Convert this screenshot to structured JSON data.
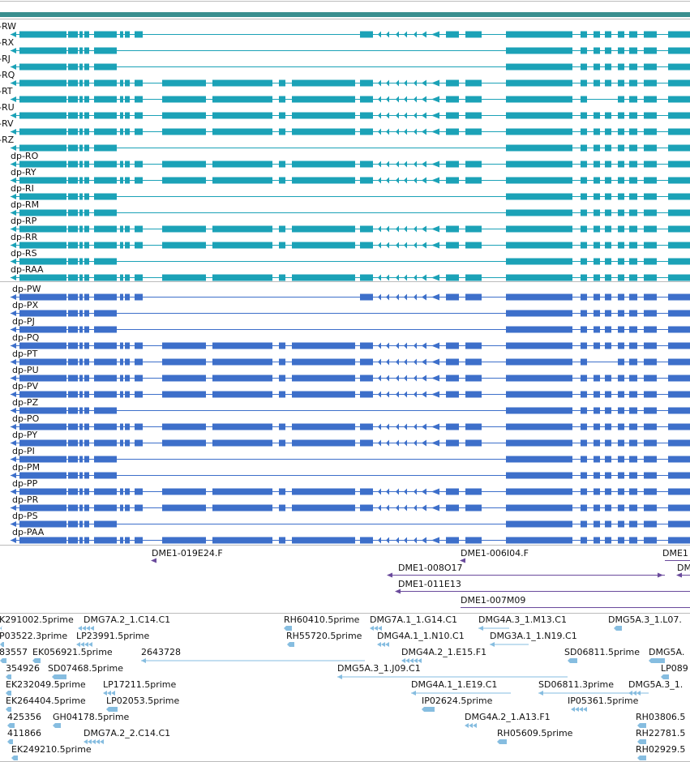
{
  "colors": {
    "transcript": "#1ba2b7",
    "protein": "#3d6fca",
    "cdna_probe": "#6a4a9c",
    "est": "#86bde0",
    "border": "#bbbbbb",
    "header_bar": "#3a8f8f"
  },
  "transcripts": [
    {
      "label": "-RW",
      "pattern": "W"
    },
    {
      "label": "-RX",
      "pattern": "X"
    },
    {
      "label": "-RJ",
      "pattern": "J"
    },
    {
      "label": "-RQ",
      "pattern": "F"
    },
    {
      "label": "-RT",
      "pattern": "T"
    },
    {
      "label": "-RU",
      "pattern": "F"
    },
    {
      "label": "-RV",
      "pattern": "F"
    },
    {
      "label": "-RZ",
      "pattern": "J"
    },
    {
      "label": "dp-RO",
      "pattern": "F"
    },
    {
      "label": "dp-RY",
      "pattern": "F"
    },
    {
      "label": "dp-RI",
      "pattern": "J"
    },
    {
      "label": "dp-RM",
      "pattern": "J"
    },
    {
      "label": "dp-RP",
      "pattern": "P"
    },
    {
      "label": "dp-RR",
      "pattern": "F"
    },
    {
      "label": "dp-RS",
      "pattern": "J"
    },
    {
      "label": "dp-RAA",
      "pattern": "F"
    }
  ],
  "proteins": [
    {
      "label": "dp-PW",
      "pattern": "W"
    },
    {
      "label": "dp-PX",
      "pattern": "X"
    },
    {
      "label": "dp-PJ",
      "pattern": "J"
    },
    {
      "label": "dp-PQ",
      "pattern": "F"
    },
    {
      "label": "dp-PT",
      "pattern": "T"
    },
    {
      "label": "dp-PU",
      "pattern": "F"
    },
    {
      "label": "dp-PV",
      "pattern": "F"
    },
    {
      "label": "dp-PZ",
      "pattern": "J"
    },
    {
      "label": "dp-PO",
      "pattern": "F"
    },
    {
      "label": "dp-PY",
      "pattern": "F"
    },
    {
      "label": "dp-PI",
      "pattern": "J"
    },
    {
      "label": "dp-PM",
      "pattern": "J"
    },
    {
      "label": "dp-PP",
      "pattern": "P"
    },
    {
      "label": "dp-PR",
      "pattern": "F"
    },
    {
      "label": "dp-PS",
      "pattern": "J"
    },
    {
      "label": "dp-PAA",
      "pattern": "F"
    }
  ],
  "cdna_probes": [
    {
      "label": "DME1-019E24.F"
    },
    {
      "label": "DME1-006I04.F"
    },
    {
      "label": "DME1"
    },
    {
      "label": "DME1-008O17"
    },
    {
      "label": "DM"
    },
    {
      "label": "DME1-011E13"
    },
    {
      "label": "DME1-007M09"
    }
  ],
  "ests": [
    {
      "label": "K291002.5prime"
    },
    {
      "label": "DMG7A.2_1.C14.C1"
    },
    {
      "label": "RH60410.5prime"
    },
    {
      "label": "DMG7A.1_1.G14.C1"
    },
    {
      "label": "DMG4A.3_1.M13.C1"
    },
    {
      "label": "DMG5A.3_1.L07."
    },
    {
      "label": "P03522.3prime"
    },
    {
      "label": "LP23991.5prime"
    },
    {
      "label": "RH55720.5prime"
    },
    {
      "label": "DMG4A.1_1.N10.C1"
    },
    {
      "label": "DMG3A.1_1.N19.C1"
    },
    {
      "label": "83557"
    },
    {
      "label": "EK056921.5prime"
    },
    {
      "label": "2643728"
    },
    {
      "label": "DMG4A.2_1.E15.F1"
    },
    {
      "label": "SD06811.5prime"
    },
    {
      "label": "DMG5A."
    },
    {
      "label": "354926"
    },
    {
      "label": "SD07468.5prime"
    },
    {
      "label": "DMG5A.3_1.J09.C1"
    },
    {
      "label": "LP089"
    },
    {
      "label": "EK232049.5prime"
    },
    {
      "label": "LP17211.5prime"
    },
    {
      "label": "DMG4A.1_1.E19.C1"
    },
    {
      "label": "SD06811.3prime"
    },
    {
      "label": "DMG5A.3_1."
    },
    {
      "label": "EK264404.5prime"
    },
    {
      "label": "LP02053.5prime"
    },
    {
      "label": "IP02624.5prime"
    },
    {
      "label": "IP05361.5prime"
    },
    {
      "label": "425356"
    },
    {
      "label": "GH04178.5prime"
    },
    {
      "label": "DMG4A.2_1.A13.F1"
    },
    {
      "label": "RH03806.5"
    },
    {
      "label": "411866"
    },
    {
      "label": "DMG7A.2_2.C14.C1"
    },
    {
      "label": "RH05609.5prime"
    },
    {
      "label": "RH22781.5"
    },
    {
      "label": "EK249210.5prime"
    },
    {
      "label": "RH02929.5"
    }
  ]
}
